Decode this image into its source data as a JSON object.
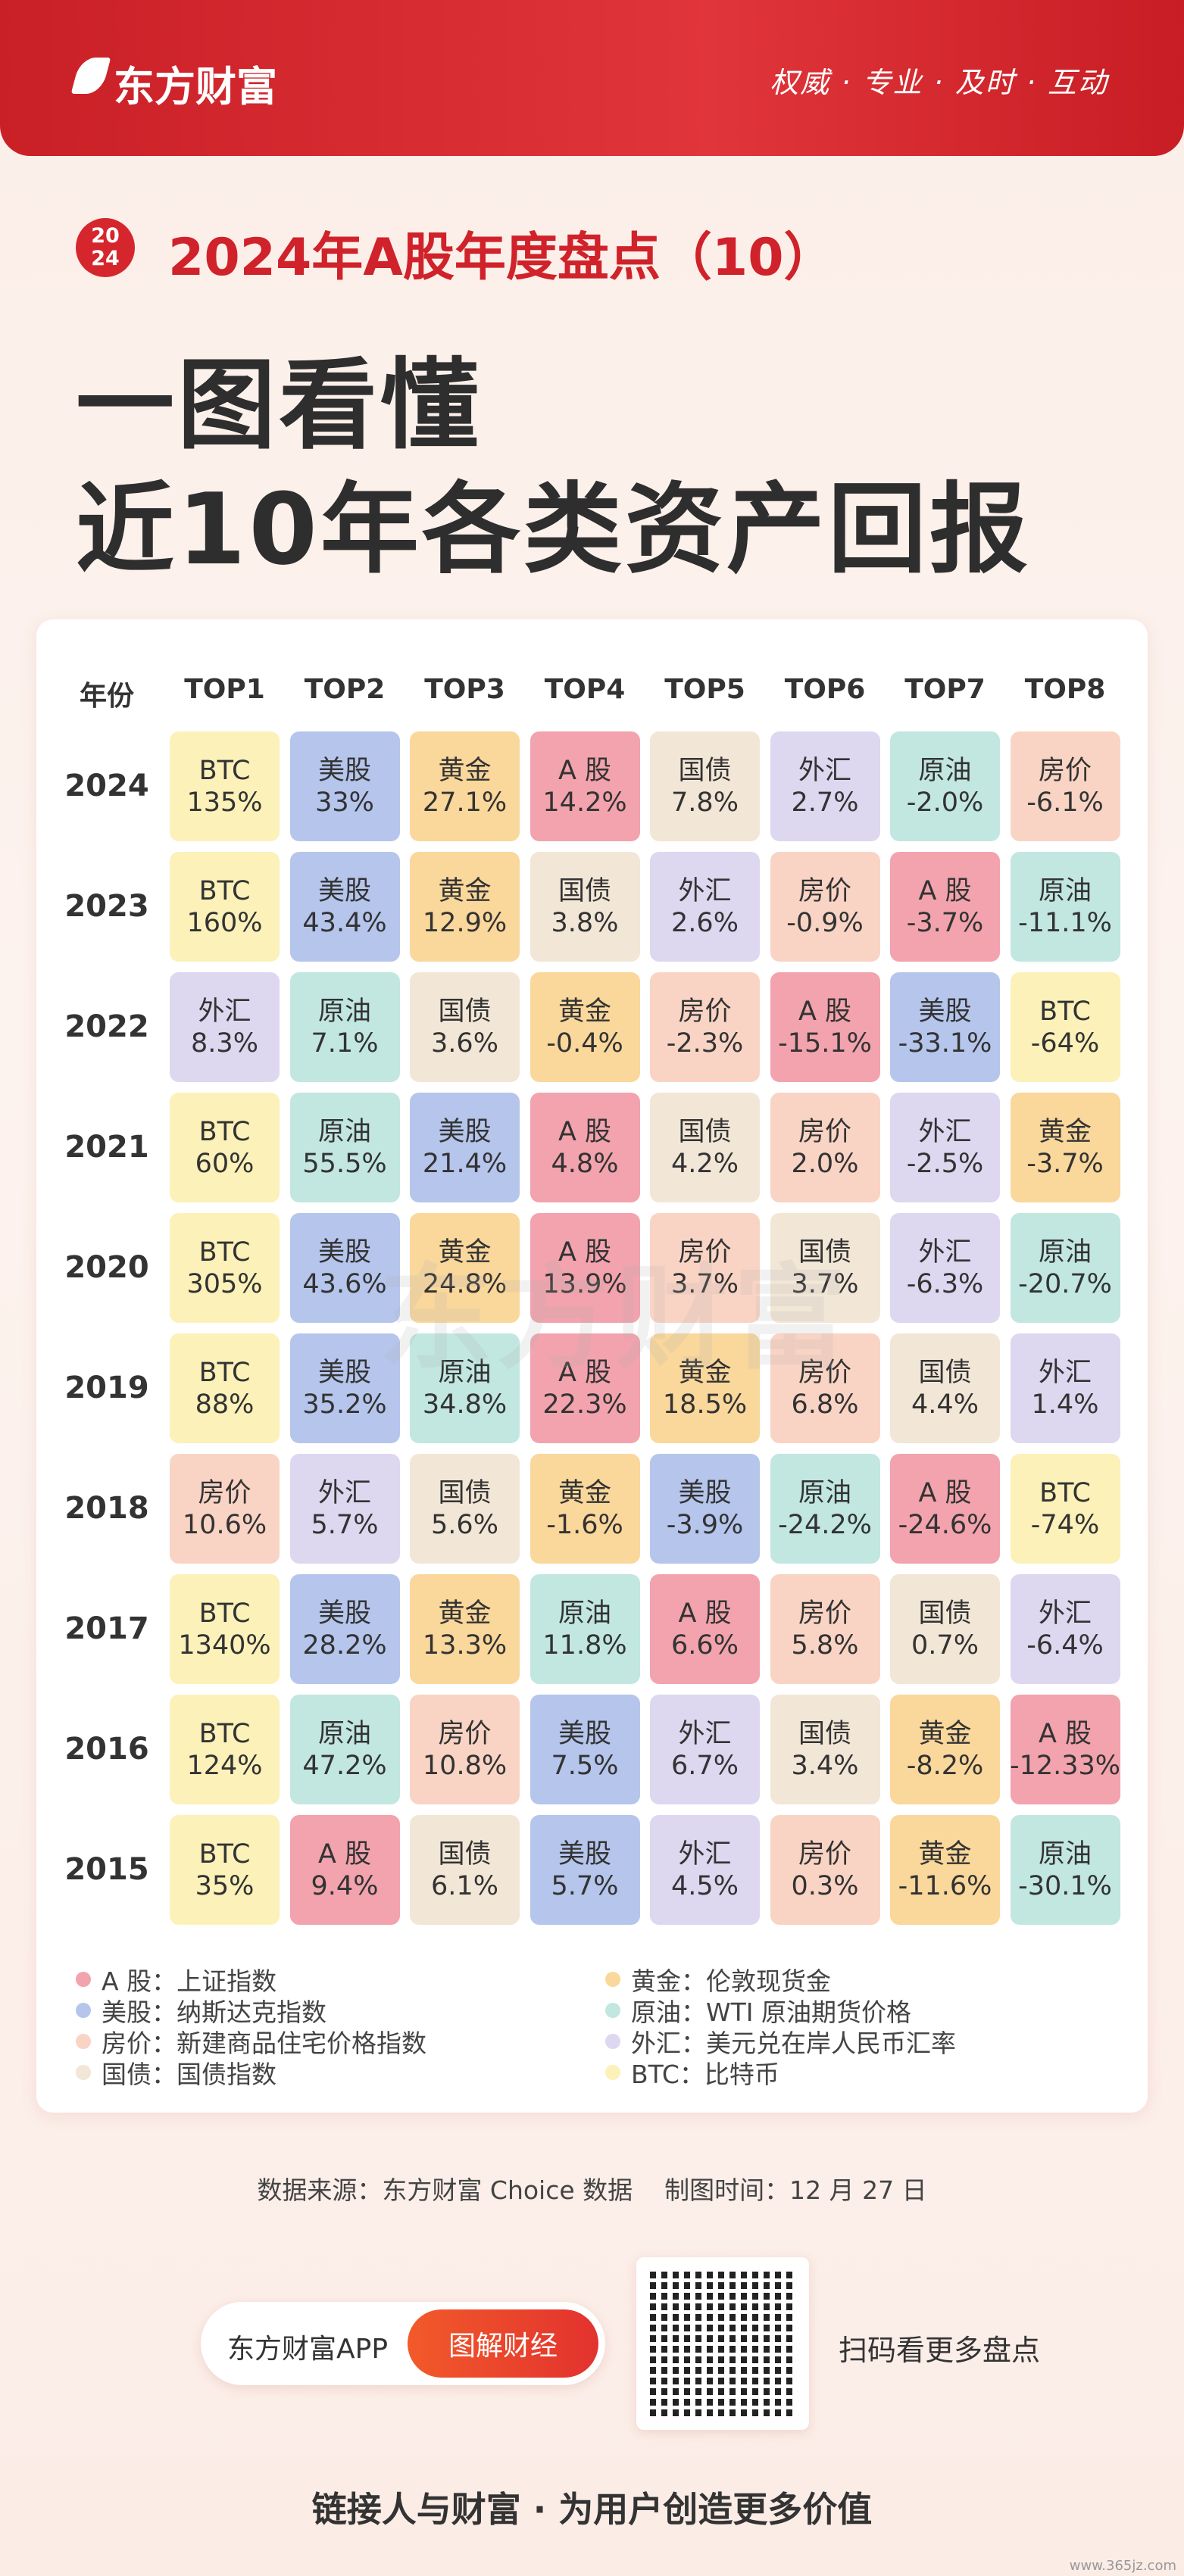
{
  "header": {
    "brand": "东方财富",
    "slogan": "权威 · 专业 · 及时 · 互动"
  },
  "badge": {
    "top": "20",
    "bottom": "24"
  },
  "subtitle": "2024年A股年度盘点（10）",
  "title": [
    "一图看懂",
    "近10年各类资产回报"
  ],
  "watermark": "东方财富",
  "table": {
    "columns": [
      "年份",
      "TOP1",
      "TOP2",
      "TOP3",
      "TOP4",
      "TOP5",
      "TOP6",
      "TOP7",
      "TOP8"
    ],
    "rows": [
      {
        "year": "2024",
        "cells": [
          {
            "asset": "BTC",
            "value": "135%"
          },
          {
            "asset": "美股",
            "value": "33%"
          },
          {
            "asset": "黄金",
            "value": "27.1%"
          },
          {
            "asset": "A 股",
            "value": "14.2%"
          },
          {
            "asset": "国债",
            "value": "7.8%"
          },
          {
            "asset": "外汇",
            "value": "2.7%"
          },
          {
            "asset": "原油",
            "value": "-2.0%"
          },
          {
            "asset": "房价",
            "value": "-6.1%"
          }
        ]
      },
      {
        "year": "2023",
        "cells": [
          {
            "asset": "BTC",
            "value": "160%"
          },
          {
            "asset": "美股",
            "value": "43.4%"
          },
          {
            "asset": "黄金",
            "value": "12.9%"
          },
          {
            "asset": "国债",
            "value": "3.8%"
          },
          {
            "asset": "外汇",
            "value": "2.6%"
          },
          {
            "asset": "房价",
            "value": "-0.9%"
          },
          {
            "asset": "A 股",
            "value": "-3.7%"
          },
          {
            "asset": "原油",
            "value": "-11.1%"
          }
        ]
      },
      {
        "year": "2022",
        "cells": [
          {
            "asset": "外汇",
            "value": "8.3%"
          },
          {
            "asset": "原油",
            "value": "7.1%"
          },
          {
            "asset": "国债",
            "value": "3.6%"
          },
          {
            "asset": "黄金",
            "value": "-0.4%"
          },
          {
            "asset": "房价",
            "value": "-2.3%"
          },
          {
            "asset": "A 股",
            "value": "-15.1%"
          },
          {
            "asset": "美股",
            "value": "-33.1%"
          },
          {
            "asset": "BTC",
            "value": "-64%"
          }
        ]
      },
      {
        "year": "2021",
        "cells": [
          {
            "asset": "BTC",
            "value": "60%"
          },
          {
            "asset": "原油",
            "value": "55.5%"
          },
          {
            "asset": "美股",
            "value": "21.4%"
          },
          {
            "asset": "A 股",
            "value": "4.8%"
          },
          {
            "asset": "国债",
            "value": "4.2%"
          },
          {
            "asset": "房价",
            "value": "2.0%"
          },
          {
            "asset": "外汇",
            "value": "-2.5%"
          },
          {
            "asset": "黄金",
            "value": "-3.7%"
          }
        ]
      },
      {
        "year": "2020",
        "cells": [
          {
            "asset": "BTC",
            "value": "305%"
          },
          {
            "asset": "美股",
            "value": "43.6%"
          },
          {
            "asset": "黄金",
            "value": "24.8%"
          },
          {
            "asset": "A 股",
            "value": "13.9%"
          },
          {
            "asset": "房价",
            "value": "3.7%"
          },
          {
            "asset": "国债",
            "value": "3.7%"
          },
          {
            "asset": "外汇",
            "value": "-6.3%"
          },
          {
            "asset": "原油",
            "value": "-20.7%"
          }
        ]
      },
      {
        "year": "2019",
        "cells": [
          {
            "asset": "BTC",
            "value": "88%"
          },
          {
            "asset": "美股",
            "value": "35.2%"
          },
          {
            "asset": "原油",
            "value": "34.8%"
          },
          {
            "asset": "A 股",
            "value": "22.3%"
          },
          {
            "asset": "黄金",
            "value": "18.5%"
          },
          {
            "asset": "房价",
            "value": "6.8%"
          },
          {
            "asset": "国债",
            "value": "4.4%"
          },
          {
            "asset": "外汇",
            "value": "1.4%"
          }
        ]
      },
      {
        "year": "2018",
        "cells": [
          {
            "asset": "房价",
            "value": "10.6%"
          },
          {
            "asset": "外汇",
            "value": "5.7%"
          },
          {
            "asset": "国债",
            "value": "5.6%"
          },
          {
            "asset": "黄金",
            "value": "-1.6%"
          },
          {
            "asset": "美股",
            "value": "-3.9%"
          },
          {
            "asset": "原油",
            "value": "-24.2%"
          },
          {
            "asset": "A 股",
            "value": "-24.6%"
          },
          {
            "asset": "BTC",
            "value": "-74%"
          }
        ]
      },
      {
        "year": "2017",
        "cells": [
          {
            "asset": "BTC",
            "value": "1340%"
          },
          {
            "asset": "美股",
            "value": "28.2%"
          },
          {
            "asset": "黄金",
            "value": "13.3%"
          },
          {
            "asset": "原油",
            "value": "11.8%"
          },
          {
            "asset": "A 股",
            "value": "6.6%"
          },
          {
            "asset": "房价",
            "value": "5.8%"
          },
          {
            "asset": "国债",
            "value": "0.7%"
          },
          {
            "asset": "外汇",
            "value": "-6.4%"
          }
        ]
      },
      {
        "year": "2016",
        "cells": [
          {
            "asset": "BTC",
            "value": "124%"
          },
          {
            "asset": "原油",
            "value": "47.2%"
          },
          {
            "asset": "房价",
            "value": "10.8%"
          },
          {
            "asset": "美股",
            "value": "7.5%"
          },
          {
            "asset": "外汇",
            "value": "6.7%"
          },
          {
            "asset": "国债",
            "value": "3.4%"
          },
          {
            "asset": "黄金",
            "value": "-8.2%"
          },
          {
            "asset": "A 股",
            "value": "-12.33%"
          }
        ]
      },
      {
        "year": "2015",
        "cells": [
          {
            "asset": "BTC",
            "value": "35%"
          },
          {
            "asset": "A 股",
            "value": "9.4%"
          },
          {
            "asset": "国债",
            "value": "6.1%"
          },
          {
            "asset": "美股",
            "value": "5.7%"
          },
          {
            "asset": "外汇",
            "value": "4.5%"
          },
          {
            "asset": "房价",
            "value": "0.3%"
          },
          {
            "asset": "黄金",
            "value": "-11.6%"
          },
          {
            "asset": "原油",
            "value": "-30.1%"
          }
        ]
      }
    ]
  },
  "legend": [
    {
      "asset": "A 股",
      "label": "A 股：上证指数",
      "color": "#f2a3ad"
    },
    {
      "asset": "黄金",
      "label": "黄金：伦敦现货金",
      "color": "#fad79b"
    },
    {
      "asset": "美股",
      "label": "美股：纳斯达克指数",
      "color": "#b5c5ec"
    },
    {
      "asset": "原油",
      "label": "原油：WTI 原油期货价格",
      "color": "#c1e7e0"
    },
    {
      "asset": "房价",
      "label": "房价：新建商品住宅价格指数",
      "color": "#f9d4c4"
    },
    {
      "asset": "外汇",
      "label": "外汇：美元兑在岸人民币汇率",
      "color": "#ddd7f0"
    },
    {
      "asset": "国债",
      "label": "国债：国债指数",
      "color": "#f2e6d6"
    },
    {
      "asset": "BTC",
      "label": "BTC：比特币",
      "color": "#fbf1b9"
    }
  ],
  "footer": {
    "source": "数据来源：东方财富 Choice 数据    制图时间：12 月 27 日",
    "app": "东方财富APP",
    "button": "图解财经",
    "scan": "扫码看更多盘点",
    "slogan": "链接人与财富 · 为用户创造更多价值",
    "site": "www.365jz.com"
  }
}
